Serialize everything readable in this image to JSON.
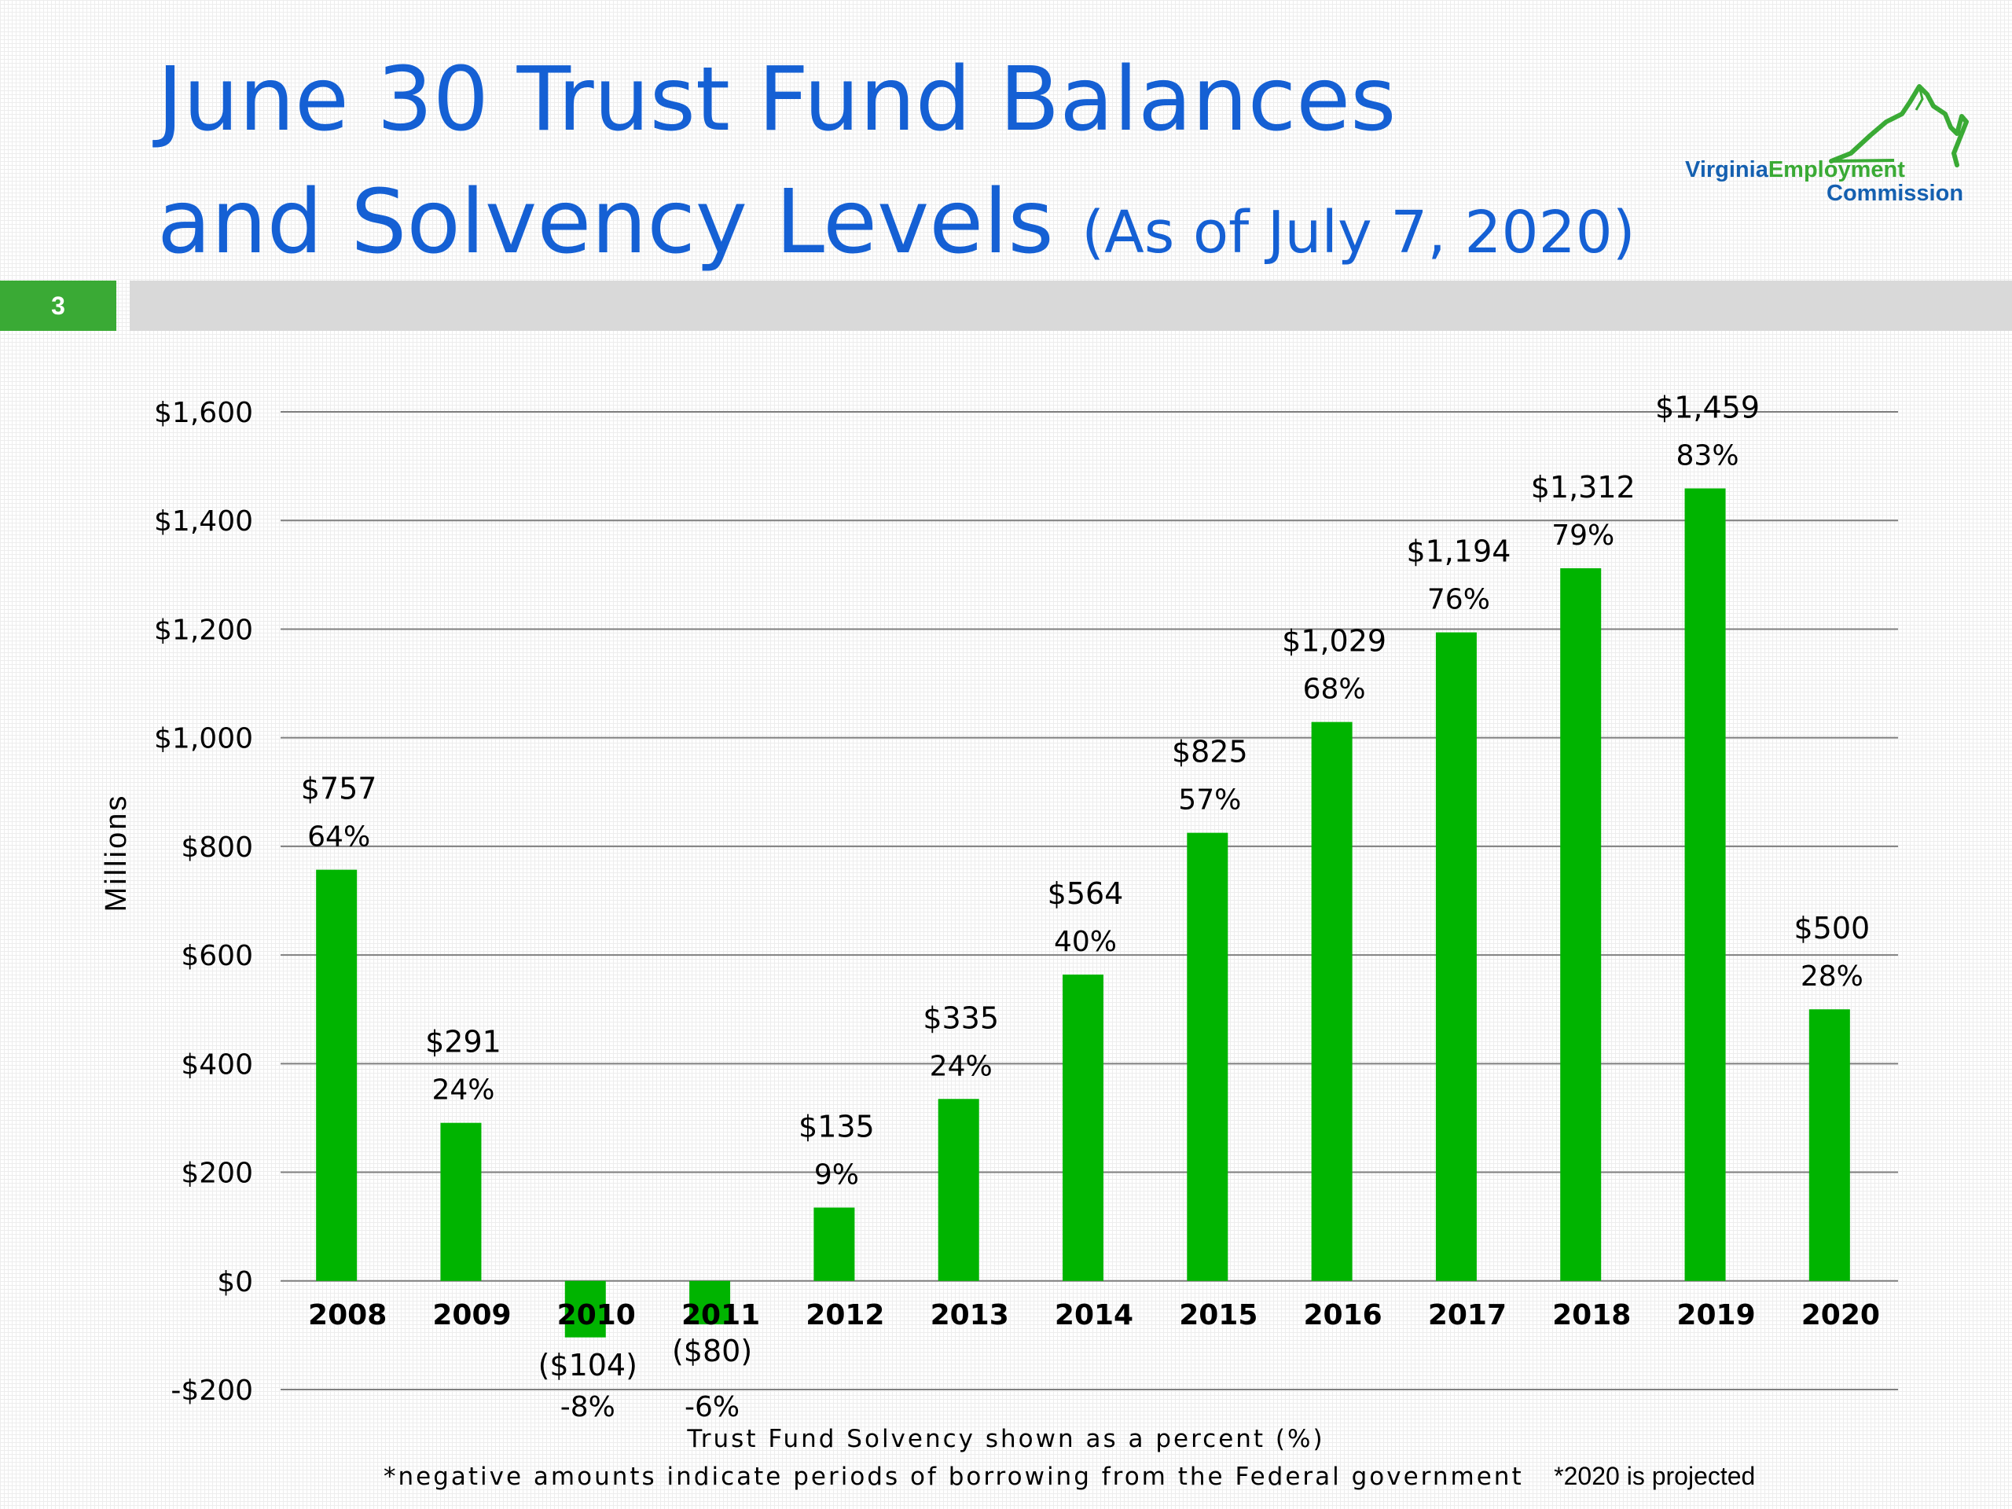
{
  "slide": {
    "title_line1": "June 30 Trust Fund Balances",
    "title_line2": "and Solvency Levels",
    "title_sub": "(As of July 7, 2020)",
    "number": "3"
  },
  "logo": {
    "word1": "Virginia",
    "word2": "Employment",
    "word3": "Commission",
    "colors": {
      "blue": "#1560b0",
      "green": "#3aaa35"
    }
  },
  "chart_data": {
    "type": "bar",
    "categories": [
      "2008",
      "2009",
      "2010",
      "2011",
      "2012",
      "2013",
      "2014",
      "2015",
      "2016",
      "2017",
      "2018",
      "2019",
      "2020"
    ],
    "values": [
      757,
      291,
      -104,
      -80,
      135,
      335,
      564,
      825,
      1029,
      1194,
      1312,
      1459,
      500
    ],
    "value_labels": [
      "$757",
      "$291",
      "($104)",
      "($80)",
      "$135",
      "$335",
      "$564",
      "$825",
      "$1,029",
      "$1,194",
      "$1,312",
      "$1,459",
      "$500"
    ],
    "percent_labels": [
      "64%",
      "24%",
      "-8%",
      "-6%",
      "9%",
      "24%",
      "40%",
      "57%",
      "68%",
      "76%",
      "79%",
      "83%",
      "28%"
    ],
    "ylabel": "Millions",
    "ylim": [
      -200,
      1600
    ],
    "yticks": [
      1600,
      1400,
      1200,
      1000,
      800,
      600,
      400,
      200,
      0,
      -200
    ],
    "ytick_labels": [
      "$1,600",
      "$1,400",
      "$1,200",
      "$1,000",
      "$800",
      "$600",
      "$400",
      "$200",
      "$0",
      "-$200"
    ],
    "grid": true,
    "bar_color": "#00b400",
    "gridline_color": "#7f7f7f"
  },
  "footnotes": {
    "line1": "Trust Fund Solvency shown as a percent (%)",
    "line2a": "*negative amounts indicate periods of borrowing from the Federal government",
    "line2b": "*2020 is projected"
  },
  "colors": {
    "title": "#1560d4",
    "accent_green": "#3aaa35",
    "header_bar": "#d9d9d9"
  }
}
